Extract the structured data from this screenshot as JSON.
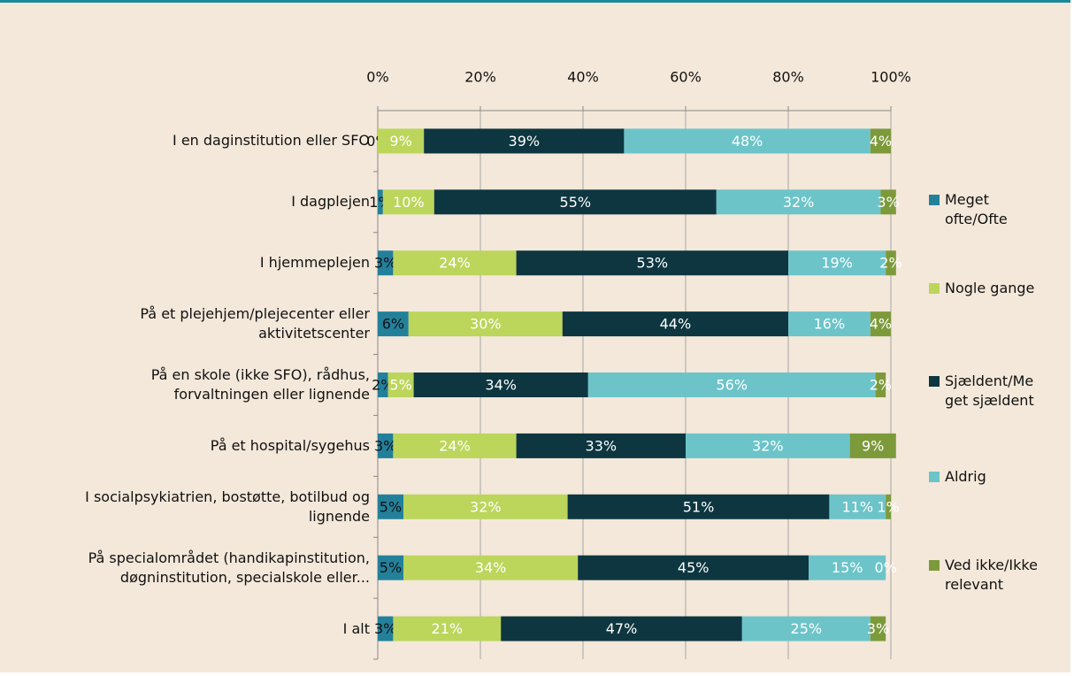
{
  "chart_data": {
    "type": "stacked-bar-horizontal",
    "categories": [
      "I en daginstitution eller SFO",
      "I dagplejen",
      "I hjemmeplejen",
      "På et plejehjem/plejecenter eller\naktivitetscenter",
      "På en skole (ikke SFO), rådhus,\nforvaltningen eller lignende",
      "På et hospital/sygehus",
      "I socialpsykiatrien, bostøtte, botilbud og\nlignende",
      "På specialområdet (handikapinstitution,\ndøgninstitution, specialskole eller...",
      "I alt"
    ],
    "series": [
      {
        "name": "Meget ofte/Ofte",
        "color": "#23809b",
        "values": [
          0,
          1,
          3,
          6,
          2,
          3,
          5,
          5,
          3
        ],
        "value_labels": [
          "0%",
          "1%",
          "3%",
          "6%",
          "2%",
          "3%",
          "5%",
          "5%",
          "3%"
        ]
      },
      {
        "name": "Nogle gange",
        "color": "#bcd55b",
        "values": [
          9,
          10,
          24,
          30,
          5,
          24,
          32,
          34,
          21
        ],
        "value_labels": [
          "9%",
          "10%",
          "24%",
          "30%",
          "5%",
          "24%",
          "32%",
          "34%",
          "21%"
        ]
      },
      {
        "name": "Sjældent/Meget sjældent",
        "color": "#0d3640",
        "values": [
          39,
          55,
          53,
          44,
          34,
          33,
          51,
          45,
          47
        ],
        "value_labels": [
          "39%",
          "55%",
          "53%",
          "44%",
          "34%",
          "33%",
          "51%",
          "45%",
          "47%"
        ]
      },
      {
        "name": "Aldrig",
        "color": "#6cc4c9",
        "values": [
          48,
          32,
          19,
          16,
          56,
          32,
          11,
          15,
          25
        ],
        "value_labels": [
          "48%",
          "32%",
          "19%",
          "16%",
          "56%",
          "32%",
          "11%",
          "15%",
          "25%"
        ]
      },
      {
        "name": "Ved ikke/Ikke relevant",
        "color": "#7d9a3b",
        "values": [
          4,
          3,
          2,
          4,
          2,
          9,
          1,
          0,
          3
        ],
        "value_labels": [
          "4%",
          "3%",
          "2%",
          "4%",
          "2%",
          "9%",
          "1%",
          "0%",
          "3%"
        ]
      }
    ],
    "xlim": [
      0,
      100
    ],
    "xticks": [
      {
        "value": 0,
        "label": "0%"
      },
      {
        "value": 20,
        "label": "20%"
      },
      {
        "value": 40,
        "label": "40%"
      },
      {
        "value": 60,
        "label": "60%"
      },
      {
        "value": 80,
        "label": "80%"
      },
      {
        "value": 100,
        "label": "100%"
      }
    ],
    "grid": true,
    "legend": "right"
  }
}
